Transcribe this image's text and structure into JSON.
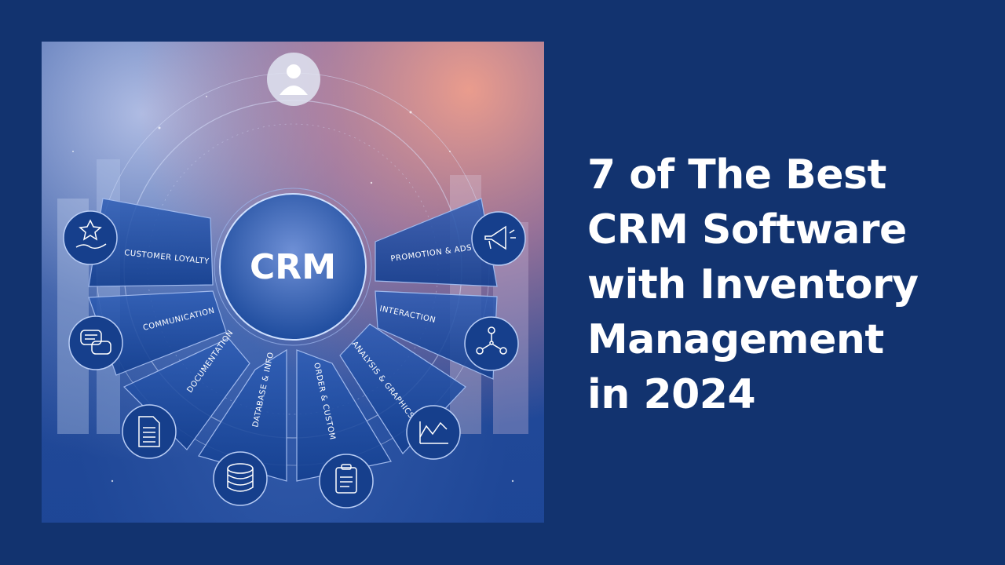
{
  "headline": {
    "line1": "7 of The Best",
    "line2": "CRM Software",
    "line3": "with Inventory",
    "line4": "Management",
    "line5": "in 2024"
  },
  "hero": {
    "center_label": "CRM",
    "segments": {
      "customer_loyalty": "CUSTOMER LOYALTY",
      "communication": "COMMUNICATION",
      "documentation": "DOCUMENTATION",
      "database_info": "DATABASE & INFO",
      "order_custom": "ORDER & CUSTOM",
      "analysis_graphics": "ANALYSIS & GRAPHICS",
      "interaction": "INTERACTION",
      "promotion_ads": "PROMOTION & ADS"
    },
    "icons": [
      "user-icon",
      "star-hand-icon",
      "chat-bubbles-icon",
      "document-icon",
      "database-icon",
      "clipboard-icon",
      "line-chart-icon",
      "network-people-icon",
      "megaphone-icon"
    ]
  },
  "colors": {
    "background": "#12336f",
    "headline": "#ffffff"
  }
}
